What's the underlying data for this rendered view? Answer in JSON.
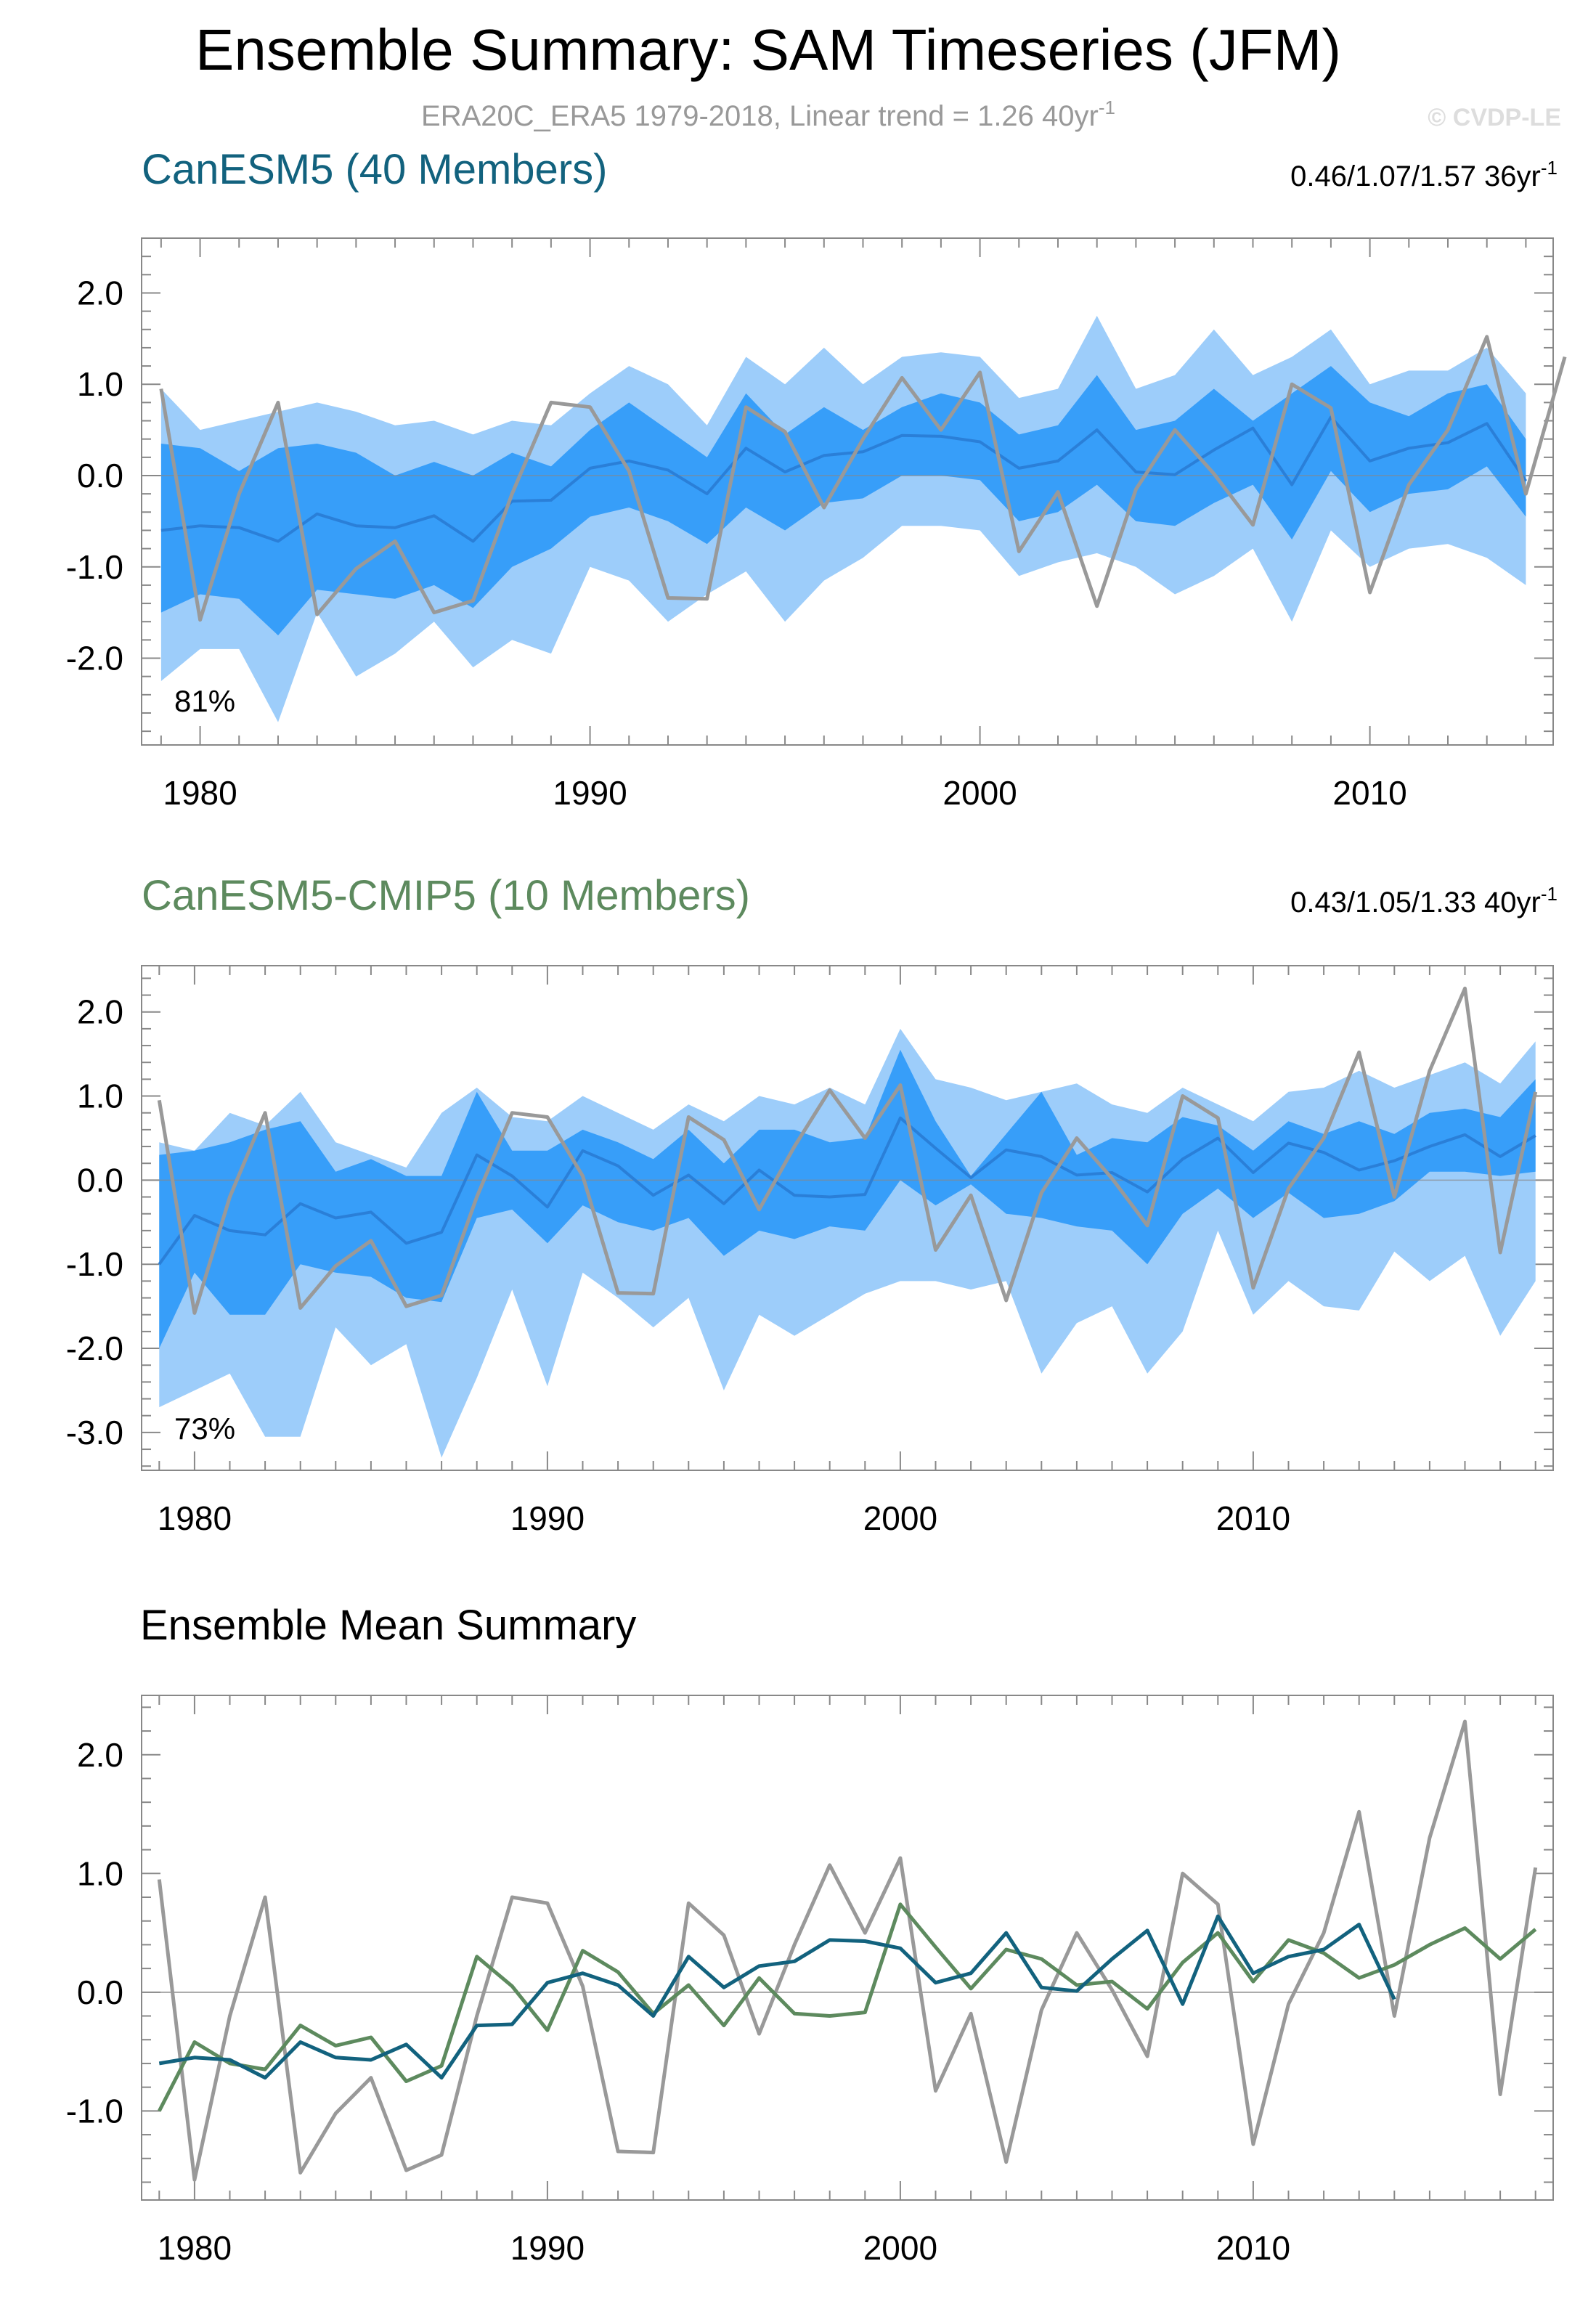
{
  "header": {
    "title": "Ensemble Summary: SAM Timeseries (JFM)",
    "subtitle_main": "ERA20C_ERA5 1979-2018, Linear trend = 1.26 40yr",
    "subtitle_sup": "-1",
    "watermark": "© CVDP-LE"
  },
  "colors": {
    "light_band": "#9dcdfa",
    "dark_band": "#379ef9",
    "mean_line_panel": "#2a7fd8",
    "obs": "#999999",
    "canesm5": "#12627e",
    "cmip5": "#5d8a5e",
    "axis": "#888888"
  },
  "chart_data": [
    {
      "type": "area",
      "name": "canesm5-panel",
      "title": "CanESM5 (40 Members)",
      "title_color": "#12627e",
      "trend_main": "0.46/1.07/1.57 36yr",
      "trend_sup": "-1",
      "percent_label": "81%",
      "xlim": [
        1978.5,
        2014.7
      ],
      "ylim": [
        -2.95,
        2.6
      ],
      "x_ticks": [
        1980,
        1990,
        2000,
        2010
      ],
      "x_tick_labels": [
        "1980",
        "1990",
        "2000",
        "2010"
      ],
      "y_ticks": [
        2,
        1,
        0,
        -1,
        -2
      ],
      "y_tick_labels": [
        "2.0",
        "1.0",
        "0.0",
        "-1.0",
        "-2.0"
      ],
      "years": [
        1979,
        1980,
        1981,
        1982,
        1983,
        1984,
        1985,
        1986,
        1987,
        1988,
        1989,
        1990,
        1991,
        1992,
        1993,
        1994,
        1995,
        1996,
        1997,
        1998,
        1999,
        2000,
        2001,
        2002,
        2003,
        2004,
        2005,
        2006,
        2007,
        2008,
        2009,
        2010,
        2011,
        2012,
        2013,
        2014
      ],
      "outer_max": [
        0.95,
        0.5,
        0.6,
        0.7,
        0.8,
        0.7,
        0.55,
        0.6,
        0.45,
        0.6,
        0.55,
        0.9,
        1.2,
        1.0,
        0.55,
        1.3,
        1.0,
        1.4,
        1.0,
        1.3,
        1.35,
        1.3,
        0.85,
        0.95,
        1.75,
        0.95,
        1.1,
        1.6,
        1.1,
        1.3,
        1.6,
        1.0,
        1.15,
        1.15,
        1.4,
        0.9
      ],
      "inner_max": [
        0.35,
        0.3,
        0.05,
        0.3,
        0.35,
        0.25,
        0.0,
        0.15,
        0.0,
        0.25,
        0.1,
        0.5,
        0.8,
        0.5,
        0.2,
        0.9,
        0.45,
        0.75,
        0.5,
        0.75,
        0.9,
        0.8,
        0.45,
        0.55,
        1.1,
        0.5,
        0.6,
        0.95,
        0.6,
        0.9,
        1.2,
        0.8,
        0.65,
        0.9,
        1.0,
        0.4
      ],
      "mean": [
        -0.6,
        -0.55,
        -0.57,
        -0.72,
        -0.42,
        -0.55,
        -0.57,
        -0.44,
        -0.72,
        -0.28,
        -0.27,
        0.08,
        0.16,
        0.06,
        -0.2,
        0.3,
        0.04,
        0.22,
        0.26,
        0.44,
        0.43,
        0.37,
        0.08,
        0.16,
        0.5,
        0.04,
        0.01,
        0.28,
        0.52,
        -0.1,
        0.64,
        0.16,
        0.3,
        0.36,
        0.57,
        -0.06
      ],
      "inner_min": [
        -1.5,
        -1.3,
        -1.35,
        -1.75,
        -1.25,
        -1.3,
        -1.35,
        -1.2,
        -1.45,
        -1.0,
        -0.8,
        -0.45,
        -0.35,
        -0.5,
        -0.75,
        -0.35,
        -0.6,
        -0.3,
        -0.25,
        0.0,
        0.0,
        -0.05,
        -0.5,
        -0.4,
        -0.1,
        -0.5,
        -0.55,
        -0.3,
        -0.1,
        -0.7,
        0.05,
        -0.4,
        -0.2,
        -0.15,
        0.1,
        -0.45
      ],
      "outer_min": [
        -2.25,
        -1.9,
        -1.9,
        -2.7,
        -1.5,
        -2.2,
        -1.95,
        -1.6,
        -2.1,
        -1.8,
        -1.95,
        -1.0,
        -1.15,
        -1.6,
        -1.3,
        -1.05,
        -1.6,
        -1.15,
        -0.9,
        -0.55,
        -0.55,
        -0.6,
        -1.1,
        -0.95,
        -0.85,
        -1.0,
        -1.3,
        -1.1,
        -0.8,
        -1.6,
        -0.6,
        -1.0,
        -0.8,
        -0.75,
        -0.9,
        -1.2
      ]
    },
    {
      "type": "area",
      "name": "cmip5-panel",
      "title": "CanESM5-CMIP5 (10 Members)",
      "title_color": "#5d8a5e",
      "trend_main": "0.43/1.05/1.33 40yr",
      "trend_sup": "-1",
      "percent_label": "73%",
      "xlim": [
        1978.5,
        2018.5
      ],
      "ylim": [
        -3.45,
        2.55
      ],
      "x_ticks": [
        1980,
        1990,
        2000,
        2010
      ],
      "x_tick_labels": [
        "1980",
        "1990",
        "2000",
        "2010"
      ],
      "y_ticks": [
        2,
        1,
        0,
        -1,
        -2,
        -3
      ],
      "y_tick_labels": [
        "2.0",
        "1.0",
        "0.0",
        "-1.0",
        "-2.0",
        "-3.0"
      ],
      "years": [
        1979,
        1980,
        1981,
        1982,
        1983,
        1984,
        1985,
        1986,
        1987,
        1988,
        1989,
        1990,
        1991,
        1992,
        1993,
        1994,
        1995,
        1996,
        1997,
        1998,
        1999,
        2000,
        2001,
        2002,
        2003,
        2004,
        2005,
        2006,
        2007,
        2008,
        2009,
        2010,
        2011,
        2012,
        2013,
        2014,
        2015,
        2016,
        2017,
        2018
      ],
      "outer_max": [
        0.45,
        0.35,
        0.8,
        0.65,
        1.05,
        0.45,
        0.3,
        0.15,
        0.8,
        1.1,
        0.75,
        0.7,
        1.0,
        0.8,
        0.6,
        0.9,
        0.7,
        1.0,
        0.9,
        1.1,
        0.9,
        1.8,
        1.2,
        1.1,
        0.95,
        1.05,
        1.15,
        0.9,
        0.8,
        1.1,
        0.9,
        0.7,
        1.05,
        1.1,
        1.3,
        1.1,
        1.25,
        1.4,
        1.15,
        1.65
      ],
      "inner_max": [
        0.3,
        0.35,
        0.45,
        0.6,
        0.7,
        0.1,
        0.25,
        0.05,
        0.05,
        1.05,
        0.35,
        0.35,
        0.6,
        0.45,
        0.25,
        0.6,
        0.2,
        0.6,
        0.6,
        0.45,
        0.5,
        1.55,
        0.7,
        0.05,
        0.55,
        1.05,
        0.3,
        0.5,
        0.45,
        0.75,
        0.65,
        0.35,
        0.7,
        0.55,
        0.7,
        0.55,
        0.8,
        0.85,
        0.75,
        1.2
      ],
      "mean": [
        -1.0,
        -0.42,
        -0.6,
        -0.65,
        -0.28,
        -0.45,
        -0.38,
        -0.75,
        -0.62,
        0.3,
        0.05,
        -0.32,
        0.35,
        0.17,
        -0.18,
        0.06,
        -0.28,
        0.12,
        -0.18,
        -0.2,
        -0.17,
        0.74,
        0.38,
        0.03,
        0.36,
        0.28,
        0.06,
        0.09,
        -0.14,
        0.25,
        0.5,
        0.09,
        0.44,
        0.33,
        0.12,
        0.23,
        0.4,
        0.54,
        0.28,
        0.53
      ],
      "inner_min": [
        -2.0,
        -1.1,
        -1.6,
        -1.6,
        -1.0,
        -1.1,
        -1.15,
        -1.4,
        -1.45,
        -0.45,
        -0.35,
        -0.75,
        -0.3,
        -0.5,
        -0.6,
        -0.45,
        -0.9,
        -0.6,
        -0.7,
        -0.55,
        -0.6,
        0.0,
        -0.3,
        -0.05,
        -0.4,
        -0.45,
        -0.55,
        -0.6,
        -1.0,
        -0.4,
        -0.1,
        -0.45,
        -0.15,
        -0.45,
        -0.4,
        -0.25,
        0.1,
        0.1,
        0.05,
        0.1
      ],
      "outer_min": [
        -2.7,
        -2.5,
        -2.3,
        -3.05,
        -3.05,
        -1.75,
        -2.2,
        -1.95,
        -3.3,
        -2.35,
        -1.3,
        -2.45,
        -1.1,
        -1.4,
        -1.75,
        -1.4,
        -2.5,
        -1.6,
        -1.85,
        -1.6,
        -1.35,
        -1.2,
        -1.2,
        -1.3,
        -1.2,
        -2.3,
        -1.7,
        -1.5,
        -2.3,
        -1.8,
        -0.6,
        -1.6,
        -1.2,
        -1.5,
        -1.55,
        -0.85,
        -1.2,
        -0.9,
        -1.85,
        -1.2
      ]
    },
    {
      "type": "line",
      "name": "mean-panel",
      "title": "Ensemble Mean Summary",
      "title_color": "#000000",
      "xlim": [
        1978.5,
        2018.5
      ],
      "ylim": [
        -1.75,
        2.5
      ],
      "x_ticks": [
        1980,
        1990,
        2000,
        2010
      ],
      "x_tick_labels": [
        "1980",
        "1990",
        "2000",
        "2010"
      ],
      "y_ticks": [
        2,
        1,
        0,
        -1
      ],
      "y_tick_labels": [
        "2.0",
        "1.0",
        "0.0",
        "-1.0"
      ]
    }
  ],
  "observations": {
    "name": "ERA20C_ERA5",
    "years": [
      1979,
      1980,
      1981,
      1982,
      1983,
      1984,
      1985,
      1986,
      1987,
      1988,
      1989,
      1990,
      1991,
      1992,
      1993,
      1994,
      1995,
      1996,
      1997,
      1998,
      1999,
      2000,
      2001,
      2002,
      2003,
      2004,
      2005,
      2006,
      2007,
      2008,
      2009,
      2010,
      2011,
      2012,
      2013,
      2014,
      2015,
      2016,
      2017,
      2018
    ],
    "values": [
      0.95,
      -1.58,
      -0.2,
      0.8,
      -1.52,
      -1.02,
      -0.72,
      -1.5,
      -1.37,
      -0.2,
      0.8,
      0.75,
      0.05,
      -1.34,
      -1.35,
      0.75,
      0.48,
      -0.35,
      0.4,
      1.07,
      0.5,
      1.13,
      -0.83,
      -0.18,
      -1.43,
      -0.15,
      0.5,
      0.02,
      -0.54,
      1.0,
      0.74,
      -1.28,
      -0.1,
      0.5,
      1.52,
      -0.2,
      1.3,
      2.28,
      -0.86,
      1.05
    ]
  }
}
